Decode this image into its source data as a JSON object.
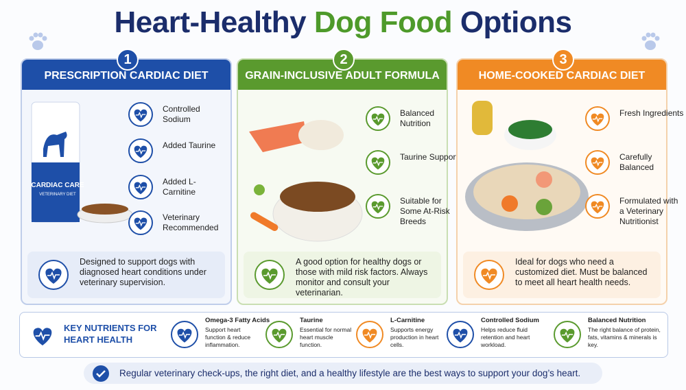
{
  "title": {
    "part1": "Heart-Healthy",
    "part2": "Dog Food",
    "part3": "Options"
  },
  "cards": [
    {
      "number": "1",
      "title": "PRESCRIPTION CARDIAC DIET",
      "features": [
        "Controlled Sodium",
        "Added Taurine",
        "Added L-Carnitine",
        "Veterinary Recommended"
      ],
      "bag_label": "CARDIAC CARE",
      "bag_sublabel": "VETERINARY DIET",
      "description": "Designed to support dogs with diagnosed heart conditions under veterinary supervision."
    },
    {
      "number": "2",
      "title": "GRAIN-INCLUSIVE ADULT FORMULA",
      "features": [
        "Balanced Nutrition",
        "Taurine Support",
        "Suitable for Some At-Risk Breeds"
      ],
      "description": "A good option for healthy dogs or those with mild risk factors. Always monitor and consult your veterinarian."
    },
    {
      "number": "3",
      "title": "HOME-COOKED CARDIAC DIET",
      "features": [
        "Fresh Ingredients",
        "Carefully Balanced",
        "Formulated with a Veterinary Nutritionist"
      ],
      "description": "Ideal for dogs who need a customized diet. Must be balanced to meet all heart health needs."
    }
  ],
  "nutrients": {
    "title": "KEY NUTRIENTS FOR HEART HEALTH",
    "items": [
      {
        "name": "Omega-3 Fatty Acids",
        "text": "Support heart function & reduce inflammation."
      },
      {
        "name": "Taurine",
        "text": "Essential for normal heart muscle function."
      },
      {
        "name": "L-Carnitine",
        "text": "Supports energy production in heart cells."
      },
      {
        "name": "Controlled Sodium",
        "text": "Helps reduce fluid retention and heart workload."
      },
      {
        "name": "Balanced Nutrition",
        "text": "The right balance of protein, fats, vitamins & minerals is key."
      }
    ]
  },
  "footer": "Regular veterinary check-ups, the right diet, and a healthy lifestyle are the best ways to support your dog’s heart."
}
